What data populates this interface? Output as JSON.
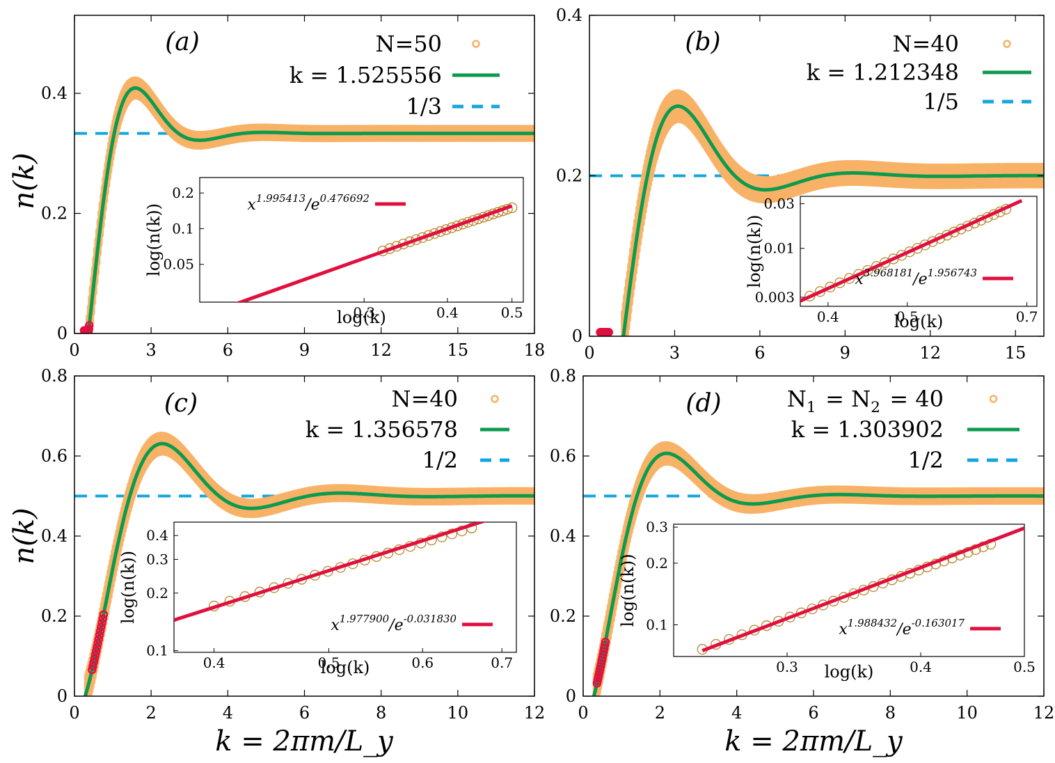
{
  "figure": {
    "xlabel": "k = 2πm/L_y",
    "ylabel": "n(k)"
  },
  "colors": {
    "data": "#f7b267",
    "fit": "#0c9a4e",
    "ref": "#13a6de",
    "inset_line": "#e0103e",
    "inset_marker": "#b8862b",
    "frame": "#000000"
  },
  "chart_data": [
    {
      "type": "line",
      "panel_label": "(a)",
      "legend": {
        "data": "N=50",
        "fit": "k = 1.525556",
        "ref": "1/3"
      },
      "xlim": [
        0,
        18
      ],
      "ylim": [
        0,
        0.53
      ],
      "xticks": [
        0,
        3,
        6,
        9,
        12,
        15,
        18
      ],
      "yticks": [
        0,
        0.2,
        0.4
      ],
      "ref_value": 0.3333,
      "fit": {
        "x0": 0.3,
        "amp": 0.42,
        "freq": 1.25,
        "decay": 0.75
      },
      "data_band": 0.009,
      "smallk": {
        "from": 0.3,
        "to": 0.5
      },
      "inset": {
        "xlabel": "log(k)",
        "ylabel": "log(n(k))",
        "scale": "log",
        "xlim": [
          0.17,
          0.52
        ],
        "ylim": [
          0.024,
          0.27
        ],
        "xticks": [
          "0.3",
          "0.4",
          "0.5"
        ],
        "yticks": [
          "0.05",
          "0.1",
          "0.2"
        ],
        "legend": "x^1.995413 / e^0.476692",
        "fit_exponent": 1.995413,
        "fit_offset": 0.476692,
        "line_x": [
          0.17,
          0.5
        ],
        "points_x": [
          0.32,
          0.5
        ],
        "points_n": 24
      }
    },
    {
      "type": "line",
      "panel_label": "(b)",
      "legend": {
        "data": "N=40",
        "fit": "k = 1.212348",
        "ref": "1/5"
      },
      "xlim": [
        0,
        16
      ],
      "ylim": [
        0,
        0.4
      ],
      "xticks": [
        0,
        3,
        6,
        9,
        12,
        15
      ],
      "yticks": [
        0,
        0.2,
        0.4
      ],
      "ref_value": 0.2,
      "fit": {
        "x0": 0.5,
        "amp": 0.38,
        "freq": 1.02,
        "decay": 0.52
      },
      "data_band": 0.012,
      "smallk": {
        "from": 0.3,
        "to": 0.6
      },
      "inset": {
        "xlabel": "log(k)",
        "ylabel": "log(n(k))",
        "scale": "log",
        "xlim": [
          0.37,
          0.72
        ],
        "ylim": [
          0.0024,
          0.036
        ],
        "xticks": [
          "0.4",
          "0.5",
          "0.7"
        ],
        "yticks": [
          "0.003",
          "0.01",
          "0.03"
        ],
        "legend": "x^3.968181 / e^1.956743",
        "fit_exponent": 3.968181,
        "fit_offset": 1.956743,
        "line_x": [
          0.37,
          0.69
        ],
        "points_x": [
          0.38,
          0.66
        ],
        "points_n": 26
      }
    },
    {
      "type": "line",
      "panel_label": "(c)",
      "legend": {
        "data": "N=40",
        "fit": "k = 1.356578",
        "ref": "1/2"
      },
      "xlim": [
        0,
        12
      ],
      "ylim": [
        0,
        0.8
      ],
      "xticks": [
        0,
        2,
        4,
        6,
        8,
        10,
        12
      ],
      "yticks": [
        0,
        0.2,
        0.4,
        0.6,
        0.8
      ],
      "ref_value": 0.5,
      "fit": {
        "x0": 0.28,
        "amp": 0.5,
        "freq": 1.35,
        "decay": 0.62
      },
      "data_band": 0.014,
      "smallk": {
        "from": 0.38,
        "to": 0.68
      },
      "inset": {
        "xlabel": "log(k)",
        "ylabel": "log(n(k))",
        "scale": "log",
        "xlim": [
          0.37,
          0.72
        ],
        "ylim": [
          0.098,
          0.47
        ],
        "xticks": [
          "0.4",
          "0.5",
          "0.6",
          "0.7"
        ],
        "yticks": [
          "0.1",
          "0.2",
          "0.3",
          "0.4"
        ],
        "legend": "x^1.977900 / e^-0.031830",
        "fit_exponent": 1.9779,
        "fit_offset": -0.03183,
        "line_x": [
          0.37,
          0.69
        ],
        "points_x": [
          0.4,
          0.66
        ],
        "points_n": 22
      }
    },
    {
      "type": "line",
      "panel_label": "(d)",
      "legend": {
        "data": "N_1 = N_2 = 40",
        "fit": "k = 1.303902",
        "ref": "1/2"
      },
      "xlim": [
        0,
        12
      ],
      "ylim": [
        0,
        0.8
      ],
      "xticks": [
        0,
        2,
        4,
        6,
        8,
        10,
        12
      ],
      "yticks": [
        0,
        0.2,
        0.4,
        0.6,
        0.8
      ],
      "ref_value": 0.5,
      "fit": {
        "x0": 0.28,
        "amp": 0.5,
        "freq": 1.4,
        "decay": 0.75
      },
      "data_band": 0.014,
      "smallk": {
        "from": 0.28,
        "to": 0.5
      },
      "inset": {
        "xlabel": "log(k)",
        "ylabel": "log(n(k))",
        "scale": "log",
        "xlim": [
          0.235,
          0.5
        ],
        "ylim": [
          0.07,
          0.31
        ],
        "xticks": [
          "0.3",
          "0.4",
          "0.5"
        ],
        "yticks": [
          "0.1",
          "0.2",
          "0.3"
        ],
        "legend": "x^1.988432 / e^-0.163017",
        "fit_exponent": 1.988432,
        "fit_offset": -0.163017,
        "line_x": [
          0.25,
          0.5
        ],
        "points_x": [
          0.25,
          0.465
        ],
        "points_n": 30
      }
    }
  ]
}
